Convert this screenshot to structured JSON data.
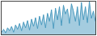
{
  "chart_data": {
    "type": "area",
    "values": [
      3,
      7,
      2,
      9,
      5,
      11,
      3,
      13,
      7,
      15,
      5,
      17,
      9,
      19,
      6,
      21,
      11,
      23,
      8,
      25,
      13,
      27,
      9,
      29,
      18,
      34,
      8,
      36,
      20,
      38,
      12,
      40,
      28,
      35,
      15,
      42,
      32,
      18,
      38,
      12,
      44,
      20,
      38,
      16,
      45,
      22,
      32,
      18
    ],
    "color": "#4a9abf",
    "xlim": [
      0,
      47
    ],
    "ylim": [
      0,
      45
    ],
    "grid": false,
    "tick_labels": false
  }
}
